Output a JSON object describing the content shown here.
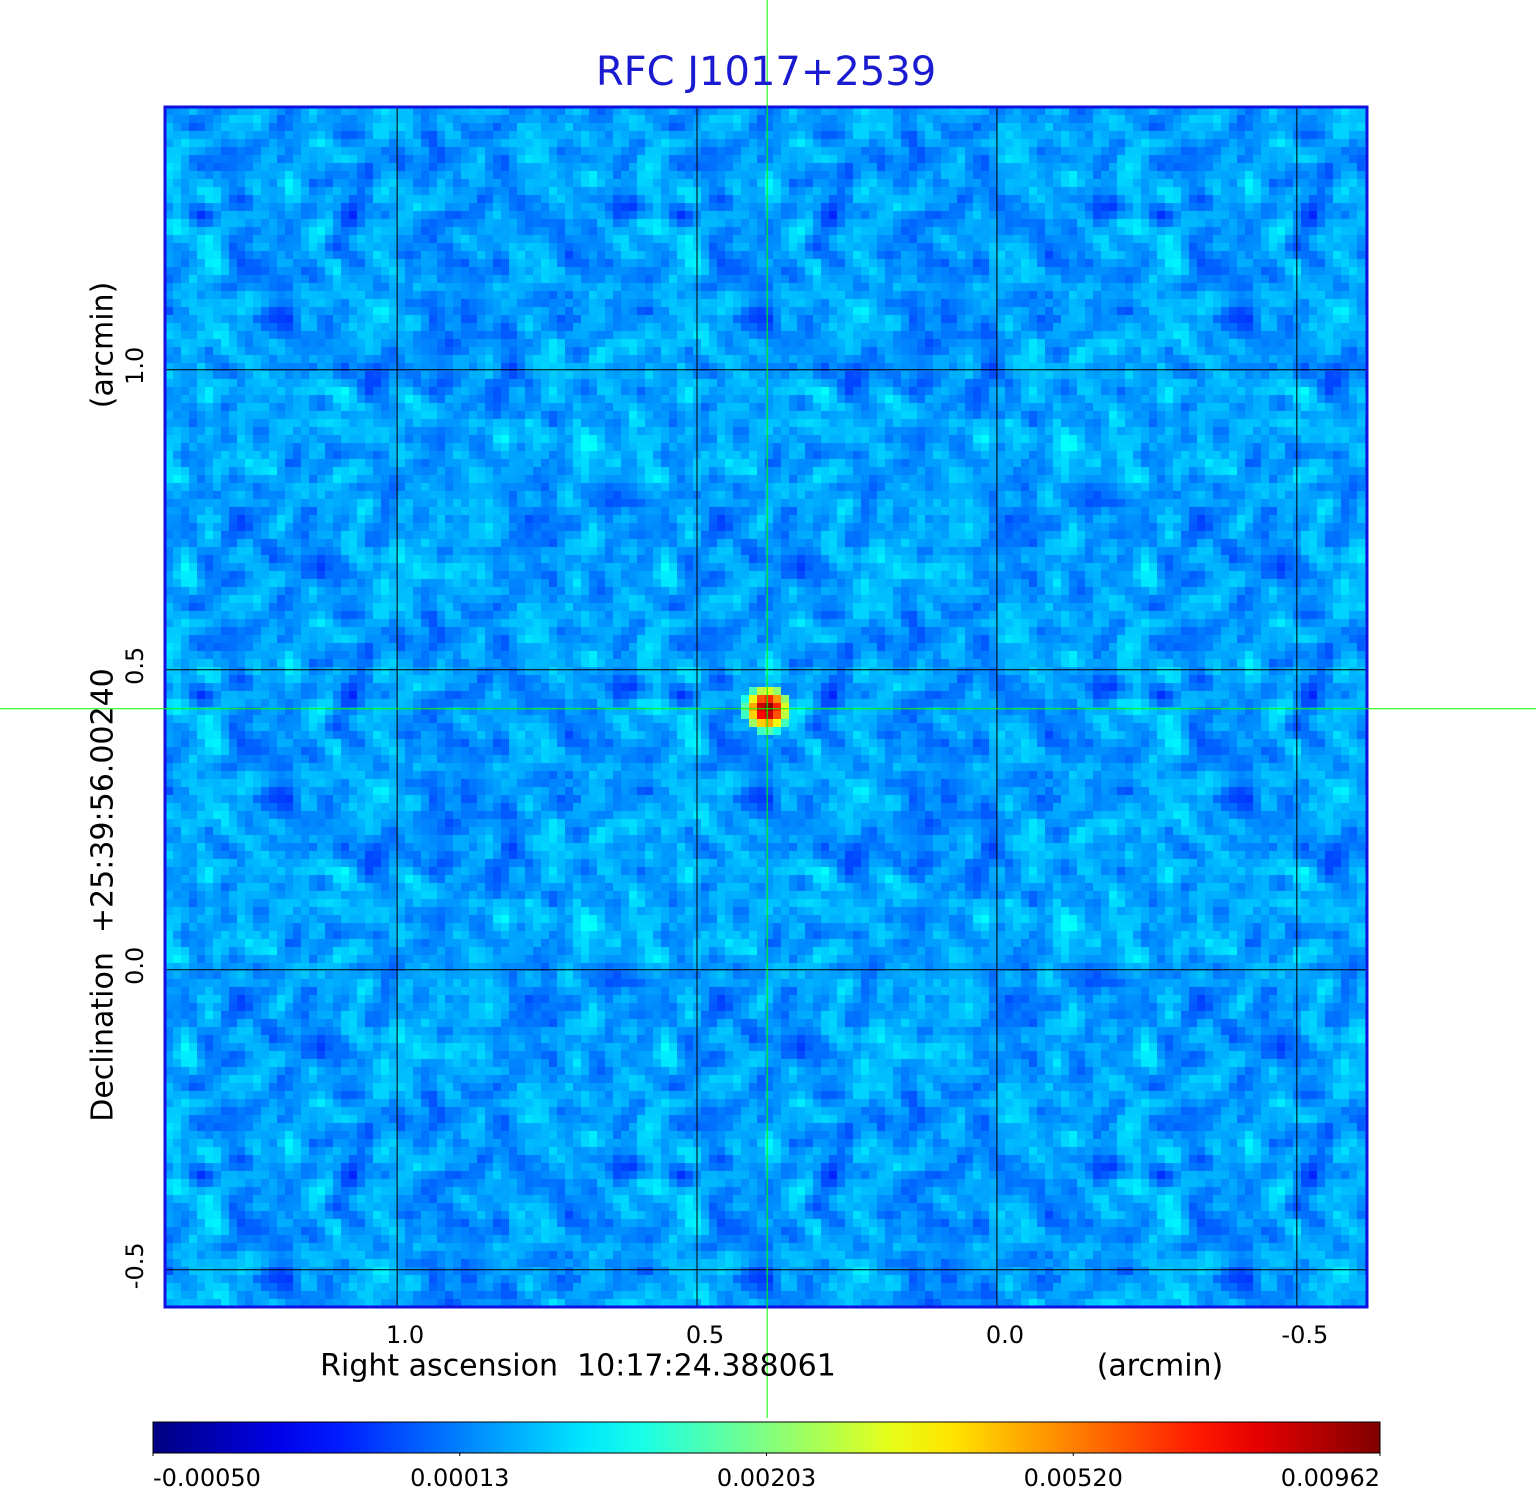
{
  "chart_data": {
    "type": "image",
    "title": "RFC J1017+2539",
    "x_label": "Right ascension  10:17:24.388061",
    "x_unit": "(arcmin)",
    "y_label": "Declination  +25:39:56.00240",
    "y_unit": "(arcmin)",
    "xlim": [
      1.387,
      -0.617
    ],
    "ylim": [
      -0.562,
      1.438
    ],
    "xticks": [
      {
        "value": 1,
        "label": "1.0"
      },
      0.5,
      {
        "value": 0,
        "label": "0.0"
      },
      -0.5
    ],
    "yticks": [
      {
        "value": 1,
        "label": "1.0"
      },
      0.5,
      {
        "value": 0,
        "label": "0.0"
      },
      -0.5
    ],
    "grid": true,
    "grid_color": "#000000",
    "colormap": "jet",
    "colorbar_ticks": [
      {
        "value": -0.0005,
        "label": "-0.00050"
      },
      0.00013,
      0.00203,
      {
        "value": 0.0052,
        "label": "0.00520"
      },
      0.00962
    ],
    "source": {
      "x": 0.383,
      "y": 0.435,
      "peak": 0.00962
    },
    "crosshair_color": "#00ff00",
    "frame_color": "#1010e0",
    "title_color": "#1a1ad0"
  }
}
